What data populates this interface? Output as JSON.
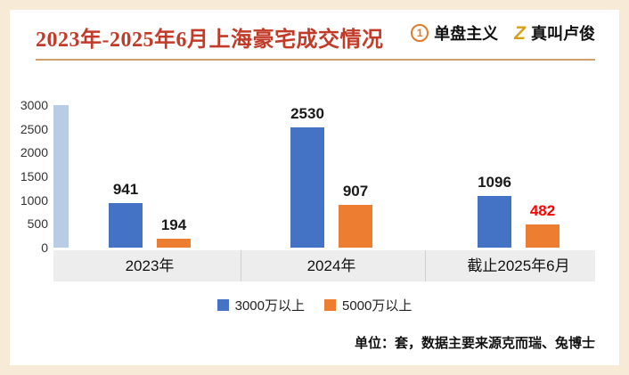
{
  "header": {
    "title": "2023年-2025年6月上海豪宅成交情况",
    "brand_primary": {
      "name": "单盘主义",
      "icon_glyph": "1"
    },
    "brand_secondary": {
      "name": "真叫卢俊",
      "icon_glyph": "Z"
    }
  },
  "chart_data": {
    "type": "bar",
    "title": "2023年-2025年6月上海豪宅成交情况",
    "categories": [
      "2023年",
      "2024年",
      "截止2025年6月"
    ],
    "series": [
      {
        "name": "3000万以上",
        "color": "#4472C4",
        "values": [
          941,
          2530,
          1096
        ]
      },
      {
        "name": "5000万以上",
        "color": "#ED7D31",
        "values": [
          194,
          907,
          482
        ]
      }
    ],
    "ylim": [
      0,
      3000
    ],
    "yticks": [
      3000,
      2500,
      2000,
      1500,
      1000,
      500,
      0
    ],
    "grid": false,
    "legend_position": "bottom",
    "value_labels": true,
    "default_label_color": "#1A1A1A",
    "highlight": {
      "series": "5000万以上",
      "category": "截止2025年6月",
      "value": 482,
      "label_color": "#FF0000"
    }
  },
  "footer": {
    "note": "单位：套，数据主要来源克而瑞、兔博士"
  },
  "theme": {
    "frame_color": "#F7EAD7",
    "divider_color": "#CDA06B",
    "title_color": "#C23A28",
    "axis_strip_color": "#B8CCE4",
    "band_color": "#EDEDED",
    "brand_orange": "#E07B2A",
    "brand_gold": "#D4A017",
    "bar_blue": "#4472C4",
    "bar_orange": "#ED7D31"
  }
}
